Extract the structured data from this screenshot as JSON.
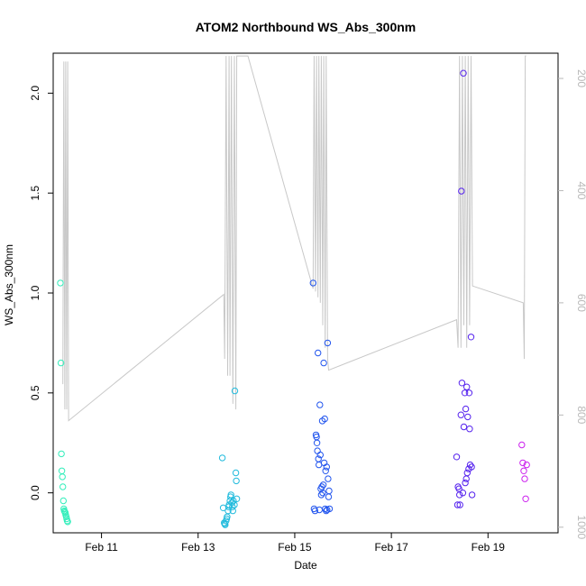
{
  "chart_data": {
    "type": "scatter",
    "title": "ATOM2 Northbound WS_Abs_300nm",
    "xlabel": "Date",
    "ylabel": "WS_Abs_300nm",
    "x_unit": "days in February",
    "xlim": [
      10.0,
      20.45
    ],
    "ylim": [
      -0.2,
      2.2
    ],
    "x_ticks": [
      11,
      13,
      15,
      17,
      19
    ],
    "x_tick_labels": [
      "Feb 11",
      "Feb 13",
      "Feb 15",
      "Feb 17",
      "Feb 19"
    ],
    "y_ticks": [
      0.0,
      0.5,
      1.0,
      1.5,
      2.0
    ],
    "y_tick_labels": [
      "0.0",
      "0.5",
      "1.0",
      "1.5",
      "2.0"
    ],
    "right_axis": {
      "ylim": [
        1010,
        155
      ],
      "ticks": [
        200,
        400,
        600,
        800,
        1000
      ],
      "tick_labels": [
        "200",
        "400",
        "600",
        "800",
        "1000"
      ],
      "color": "#b8b8b8",
      "line_x": [
        10.2,
        10.22,
        10.24,
        10.26,
        10.28,
        10.3,
        10.32,
        13.53,
        13.55,
        13.58,
        13.61,
        13.64,
        13.66,
        13.69,
        13.72,
        13.75,
        13.78,
        13.8,
        14.03,
        15.38,
        15.4,
        15.43,
        15.45,
        15.48,
        15.5,
        15.53,
        15.55,
        15.58,
        15.6,
        15.63,
        15.65,
        15.68,
        15.7,
        18.35,
        18.38,
        18.41,
        18.44,
        18.47,
        18.5,
        18.53,
        18.56,
        18.59,
        18.62,
        18.65,
        18.68,
        19.73,
        19.75,
        19.77,
        19.79
      ],
      "line_y": [
        745,
        170,
        790,
        170,
        790,
        170,
        810,
        585,
        700,
        160,
        730,
        160,
        730,
        160,
        780,
        160,
        790,
        160,
        160,
        575,
        160,
        580,
        160,
        590,
        160,
        600,
        160,
        640,
        160,
        680,
        160,
        700,
        720,
        630,
        680,
        160,
        680,
        160,
        640,
        160,
        680,
        160,
        640,
        160,
        570,
        600,
        700,
        160,
        160
      ]
    },
    "series": [
      {
        "color": "#33eebb",
        "x": [
          10.15,
          10.16,
          10.17,
          10.18,
          10.19,
          10.2,
          10.21,
          10.22,
          10.23,
          10.24,
          10.25,
          10.26,
          10.27,
          10.28,
          10.29,
          10.3
        ],
        "y": [
          1.05,
          0.65,
          0.195,
          0.11,
          0.08,
          0.03,
          -0.04,
          -0.08,
          -0.09,
          -0.095,
          -0.1,
          -0.11,
          -0.12,
          -0.13,
          -0.14,
          -0.145
        ]
      },
      {
        "color": "#22bbdd",
        "x": [
          13.5,
          13.52,
          13.54,
          13.55,
          13.56,
          13.58,
          13.59,
          13.6,
          13.62,
          13.63,
          13.64,
          13.66,
          13.67,
          13.68,
          13.7,
          13.71,
          13.72,
          13.73,
          13.75,
          13.76,
          13.78,
          13.79,
          13.8
        ],
        "y": [
          0.175,
          -0.075,
          -0.15,
          -0.155,
          -0.16,
          -0.14,
          -0.13,
          -0.12,
          -0.09,
          -0.07,
          -0.06,
          -0.04,
          -0.02,
          -0.01,
          -0.05,
          -0.07,
          -0.09,
          -0.04,
          -0.06,
          0.51,
          0.1,
          0.06,
          -0.03
        ]
      },
      {
        "color": "#2255ee",
        "x": [
          15.38,
          15.4,
          15.42,
          15.44,
          15.45,
          15.46,
          15.47,
          15.48,
          15.49,
          15.5,
          15.51,
          15.52,
          15.53,
          15.54,
          15.55,
          15.56,
          15.57,
          15.58,
          15.59,
          15.6,
          15.61,
          15.62,
          15.63,
          15.64,
          15.65,
          15.66,
          15.67,
          15.68,
          15.69,
          15.7,
          15.71,
          15.72
        ],
        "y": [
          1.05,
          -0.08,
          -0.09,
          0.29,
          0.28,
          0.25,
          0.21,
          0.7,
          0.17,
          0.14,
          -0.085,
          0.44,
          0.19,
          0.02,
          -0.01,
          0.03,
          0.36,
          0.0,
          0.04,
          0.65,
          0.15,
          0.37,
          -0.08,
          0.11,
          -0.09,
          0.13,
          -0.085,
          0.75,
          0.07,
          -0.02,
          0.01,
          -0.08
        ]
      },
      {
        "color": "#5522ee",
        "x": [
          18.35,
          18.37,
          18.38,
          18.4,
          18.41,
          18.42,
          18.44,
          18.45,
          18.46,
          18.48,
          18.49,
          18.5,
          18.52,
          18.53,
          18.54,
          18.55,
          18.56,
          18.57,
          18.58,
          18.6,
          18.61,
          18.62,
          18.63,
          18.65,
          18.66,
          18.67
        ],
        "y": [
          0.18,
          -0.06,
          0.03,
          0.02,
          -0.01,
          -0.06,
          0.39,
          1.51,
          0.55,
          0.0,
          2.1,
          0.33,
          0.5,
          0.05,
          0.42,
          0.07,
          0.53,
          0.1,
          0.38,
          0.12,
          0.5,
          0.32,
          0.14,
          0.78,
          0.13,
          -0.01
        ]
      },
      {
        "color": "#cc22ee",
        "x": [
          19.7,
          19.72,
          19.74,
          19.76,
          19.78,
          19.8
        ],
        "y": [
          0.24,
          0.15,
          0.11,
          0.07,
          -0.03,
          0.14
        ]
      }
    ]
  }
}
